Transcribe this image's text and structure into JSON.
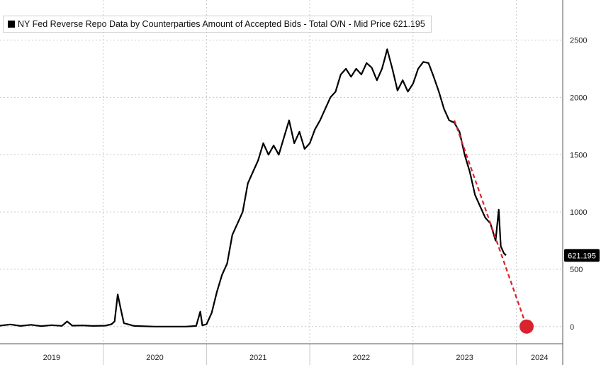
{
  "legend": {
    "icon": "square-series-swatch",
    "text": "NY Fed Reverse Repo Data by Counterparties Amount of Accepted Bids - Total O/N - Mid Price 621.195"
  },
  "colors": {
    "series": "#000000",
    "trend": "#d9232e",
    "grid": "#c8c8c8",
    "axis": "#555555",
    "badge": "#000000"
  },
  "chart_data": {
    "type": "line",
    "title": "NY Fed Reverse Repo Data by Counterparties Amount of Accepted Bids - Total O/N - Mid Price 621.195",
    "xlabel": "",
    "ylabel": "",
    "x_ticks": [
      "2019",
      "2020",
      "2021",
      "2022",
      "2023",
      "2024"
    ],
    "y_ticks": [
      0,
      500,
      1000,
      1500,
      2000,
      2500
    ],
    "xlim": [
      2019.0,
      2024.45
    ],
    "ylim": [
      -150,
      2850
    ],
    "grid": true,
    "y_axis_side": "right",
    "last_value_label": "621.195",
    "series": [
      {
        "values": [
          [
            2019.0,
            8
          ],
          [
            2019.1,
            18
          ],
          [
            2019.2,
            5
          ],
          [
            2019.3,
            15
          ],
          [
            2019.4,
            4
          ],
          [
            2019.5,
            12
          ],
          [
            2019.6,
            6
          ],
          [
            2019.65,
            45
          ],
          [
            2019.7,
            8
          ],
          [
            2019.8,
            10
          ],
          [
            2019.9,
            5
          ],
          [
            2020.02,
            8
          ],
          [
            2020.08,
            20
          ],
          [
            2020.11,
            45
          ],
          [
            2020.14,
            280
          ],
          [
            2020.17,
            150
          ],
          [
            2020.2,
            30
          ],
          [
            2020.3,
            5
          ],
          [
            2020.5,
            0
          ],
          [
            2020.8,
            0
          ],
          [
            2020.85,
            2
          ],
          [
            2020.9,
            5
          ],
          [
            2020.94,
            130
          ],
          [
            2020.96,
            10
          ],
          [
            2021.0,
            20
          ],
          [
            2021.05,
            120
          ],
          [
            2021.1,
            300
          ],
          [
            2021.15,
            450
          ],
          [
            2021.2,
            550
          ],
          [
            2021.25,
            800
          ],
          [
            2021.3,
            900
          ],
          [
            2021.35,
            1000
          ],
          [
            2021.4,
            1250
          ],
          [
            2021.45,
            1350
          ],
          [
            2021.5,
            1450
          ],
          [
            2021.55,
            1600
          ],
          [
            2021.6,
            1500
          ],
          [
            2021.65,
            1580
          ],
          [
            2021.7,
            1500
          ],
          [
            2021.75,
            1650
          ],
          [
            2021.8,
            1800
          ],
          [
            2021.85,
            1600
          ],
          [
            2021.9,
            1700
          ],
          [
            2021.95,
            1550
          ],
          [
            2022.0,
            1600
          ],
          [
            2022.05,
            1720
          ],
          [
            2022.1,
            1800
          ],
          [
            2022.15,
            1900
          ],
          [
            2022.2,
            2000
          ],
          [
            2022.25,
            2050
          ],
          [
            2022.3,
            2200
          ],
          [
            2022.35,
            2250
          ],
          [
            2022.4,
            2180
          ],
          [
            2022.45,
            2250
          ],
          [
            2022.5,
            2200
          ],
          [
            2022.55,
            2300
          ],
          [
            2022.6,
            2260
          ],
          [
            2022.65,
            2150
          ],
          [
            2022.7,
            2250
          ],
          [
            2022.73,
            2350
          ],
          [
            2022.75,
            2420
          ],
          [
            2022.8,
            2250
          ],
          [
            2022.85,
            2060
          ],
          [
            2022.9,
            2150
          ],
          [
            2022.95,
            2050
          ],
          [
            2023.0,
            2120
          ],
          [
            2023.05,
            2250
          ],
          [
            2023.1,
            2310
          ],
          [
            2023.15,
            2300
          ],
          [
            2023.2,
            2180
          ],
          [
            2023.25,
            2050
          ],
          [
            2023.3,
            1900
          ],
          [
            2023.35,
            1800
          ],
          [
            2023.4,
            1780
          ],
          [
            2023.45,
            1700
          ],
          [
            2023.5,
            1500
          ],
          [
            2023.55,
            1350
          ],
          [
            2023.6,
            1150
          ],
          [
            2023.65,
            1050
          ],
          [
            2023.7,
            950
          ],
          [
            2023.75,
            900
          ],
          [
            2023.8,
            750
          ],
          [
            2023.83,
            1020
          ],
          [
            2023.85,
            700
          ],
          [
            2023.88,
            640
          ],
          [
            2023.9,
            621.195
          ]
        ]
      },
      {
        "values": [
          [
            2023.4,
            1800
          ],
          [
            2024.1,
            0
          ]
        ]
      }
    ]
  }
}
